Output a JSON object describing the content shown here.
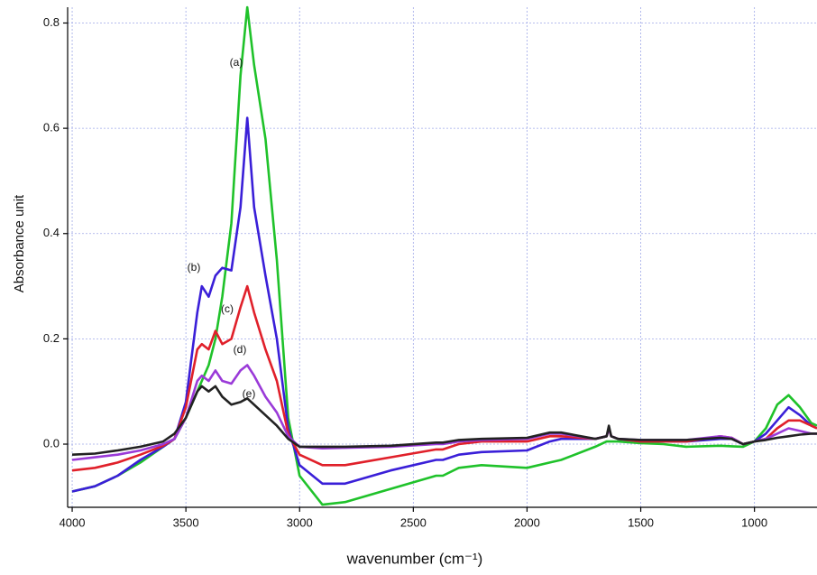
{
  "chart_data": {
    "type": "line",
    "xlabel": "wavenumber (cm⁻¹)",
    "ylabel": "Absorbance unit",
    "x": [
      4000,
      3900,
      3800,
      3700,
      3600,
      3550,
      3500,
      3450,
      3430,
      3400,
      3370,
      3340,
      3300,
      3260,
      3230,
      3200,
      3150,
      3100,
      3050,
      3000,
      2900,
      2800,
      2600,
      2400,
      2370,
      2300,
      2200,
      2000,
      1900,
      1850,
      1700,
      1650,
      1640,
      1630,
      1600,
      1500,
      1400,
      1300,
      1150,
      1100,
      1050,
      1000,
      950,
      900,
      850,
      800,
      750,
      725
    ],
    "series": [
      {
        "name": "(a)",
        "color": "#1fc22a",
        "values": [
          -0.09,
          -0.08,
          -0.06,
          -0.035,
          -0.005,
          0.01,
          0.05,
          0.1,
          0.12,
          0.15,
          0.2,
          0.28,
          0.42,
          0.7,
          0.83,
          0.72,
          0.58,
          0.35,
          0.05,
          -0.06,
          -0.115,
          -0.11,
          -0.085,
          -0.06,
          -0.06,
          -0.045,
          -0.04,
          -0.045,
          -0.035,
          -0.03,
          -0.005,
          0.005,
          0.005,
          0.005,
          0.005,
          0.002,
          0.0,
          -0.005,
          -0.003,
          -0.004,
          -0.005,
          0.005,
          0.03,
          0.075,
          0.093,
          0.07,
          0.04,
          0.035
        ]
      },
      {
        "name": "(b)",
        "color": "#3a1fd8",
        "values": [
          -0.09,
          -0.08,
          -0.06,
          -0.03,
          -0.005,
          0.01,
          0.08,
          0.25,
          0.3,
          0.28,
          0.32,
          0.335,
          0.33,
          0.45,
          0.62,
          0.45,
          0.32,
          0.2,
          0.03,
          -0.04,
          -0.075,
          -0.075,
          -0.05,
          -0.03,
          -0.03,
          -0.02,
          -0.015,
          -0.012,
          0.005,
          0.01,
          0.01,
          0.015,
          0.03,
          0.015,
          0.01,
          0.005,
          0.005,
          0.005,
          0.01,
          0.01,
          0.0,
          0.005,
          0.02,
          0.045,
          0.07,
          0.055,
          0.035,
          0.03
        ]
      },
      {
        "name": "(c)",
        "color": "#e0202a",
        "values": [
          -0.05,
          -0.045,
          -0.035,
          -0.02,
          -0.003,
          0.01,
          0.07,
          0.18,
          0.19,
          0.18,
          0.215,
          0.19,
          0.2,
          0.26,
          0.3,
          0.25,
          0.18,
          0.12,
          0.02,
          -0.02,
          -0.04,
          -0.04,
          -0.025,
          -0.01,
          -0.01,
          0.0,
          0.005,
          0.005,
          0.015,
          0.015,
          0.01,
          0.015,
          0.03,
          0.015,
          0.01,
          0.005,
          0.005,
          0.005,
          0.015,
          0.012,
          0.0,
          0.005,
          0.01,
          0.03,
          0.045,
          0.045,
          0.035,
          0.03
        ]
      },
      {
        "name": "(d)",
        "color": "#9a3ad8",
        "values": [
          -0.03,
          -0.025,
          -0.02,
          -0.012,
          0.0,
          0.01,
          0.05,
          0.12,
          0.13,
          0.12,
          0.14,
          0.12,
          0.115,
          0.14,
          0.15,
          0.13,
          0.09,
          0.06,
          0.015,
          -0.005,
          -0.008,
          -0.007,
          -0.005,
          0.0,
          0.0,
          0.005,
          0.008,
          0.01,
          0.02,
          0.02,
          0.01,
          0.015,
          0.03,
          0.015,
          0.01,
          0.008,
          0.008,
          0.008,
          0.015,
          0.012,
          0.0,
          0.005,
          0.01,
          0.02,
          0.03,
          0.025,
          0.02,
          0.02
        ]
      },
      {
        "name": "(e)",
        "color": "#222222",
        "values": [
          -0.02,
          -0.018,
          -0.012,
          -0.005,
          0.005,
          0.02,
          0.05,
          0.1,
          0.11,
          0.1,
          0.11,
          0.09,
          0.075,
          0.08,
          0.087,
          0.075,
          0.055,
          0.035,
          0.01,
          -0.005,
          -0.005,
          -0.005,
          -0.003,
          0.003,
          0.003,
          0.008,
          0.01,
          0.012,
          0.022,
          0.022,
          0.01,
          0.015,
          0.035,
          0.015,
          0.01,
          0.008,
          0.008,
          0.008,
          0.012,
          0.01,
          0.0,
          0.005,
          0.008,
          0.012,
          0.015,
          0.018,
          0.02,
          0.02
        ]
      }
    ],
    "xlim": [
      4020,
      725
    ],
    "xticks": [
      4000,
      3500,
      3000,
      2500,
      2000,
      1500,
      1000
    ],
    "ylim": [
      -0.12,
      0.83
    ],
    "yticks": [
      {
        "value": 0,
        "label": "0.0"
      },
      0.2,
      0.4,
      0.6,
      0.8
    ],
    "grid": true
  }
}
